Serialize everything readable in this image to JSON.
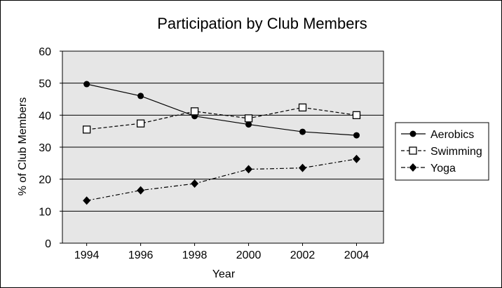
{
  "chart_data": {
    "type": "line",
    "title": "Participation by Club Members",
    "xlabel": "Year",
    "ylabel": "% of Club Members",
    "x": [
      1994,
      1996,
      1998,
      2000,
      2002,
      2004
    ],
    "x_tick_labels": [
      "1994",
      "1996",
      "1998",
      "2000",
      "2002",
      "2004"
    ],
    "ylim": [
      0,
      60
    ],
    "y_ticks": [
      0,
      10,
      20,
      30,
      40,
      50,
      60
    ],
    "y_tick_labels": [
      "0",
      "10",
      "20",
      "30",
      "40",
      "50",
      "60"
    ],
    "grid": true,
    "legend_position": "right",
    "plot_background": "#e6e6e6",
    "series": [
      {
        "name": "Aerobics",
        "values": [
          49.7,
          46.0,
          39.7,
          37.1,
          34.8,
          33.7
        ],
        "marker": "circle",
        "line_style": "solid",
        "color": "#000000"
      },
      {
        "name": "Swimming",
        "values": [
          35.5,
          37.4,
          41.2,
          39.0,
          42.4,
          40.0
        ],
        "marker": "square-open",
        "line_style": "dashed",
        "color": "#000000"
      },
      {
        "name": "Yoga",
        "values": [
          13.3,
          16.5,
          18.6,
          23.1,
          23.5,
          26.3
        ],
        "marker": "diamond",
        "line_style": "dash-dot",
        "color": "#000000"
      }
    ]
  }
}
